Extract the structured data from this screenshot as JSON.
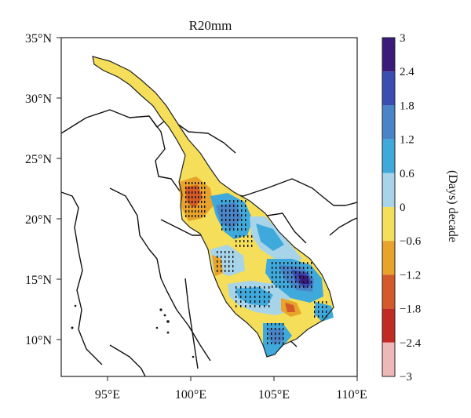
{
  "map": {
    "title": "R20mm",
    "x_ticks": [
      "95°E",
      "100°E",
      "105°E",
      "110°E"
    ],
    "y_ticks": [
      "35°N",
      "30°N",
      "25°N",
      "20°N",
      "15°N",
      "10°N"
    ],
    "extent": {
      "lon": [
        92,
        110
      ],
      "lat": [
        7,
        35
      ]
    },
    "stippling": "hatched dots mark statistically significant trends",
    "region": "Lancang-Mekong river basin"
  },
  "colorbar": {
    "title": "(Days) decade",
    "tick_labels": [
      "3",
      "2.4",
      "1.8",
      "1.2",
      "0.6",
      "0",
      "-0.6",
      "-1.2",
      "-1.8",
      "-2.4",
      "-3"
    ],
    "colors": [
      "#3a1a7a",
      "#3b4db0",
      "#4a84c8",
      "#3fa9dc",
      "#a8d4ea",
      "#f4de5a",
      "#e7a32a",
      "#d45a2a",
      "#c22a24",
      "#efb8b8"
    ]
  }
}
